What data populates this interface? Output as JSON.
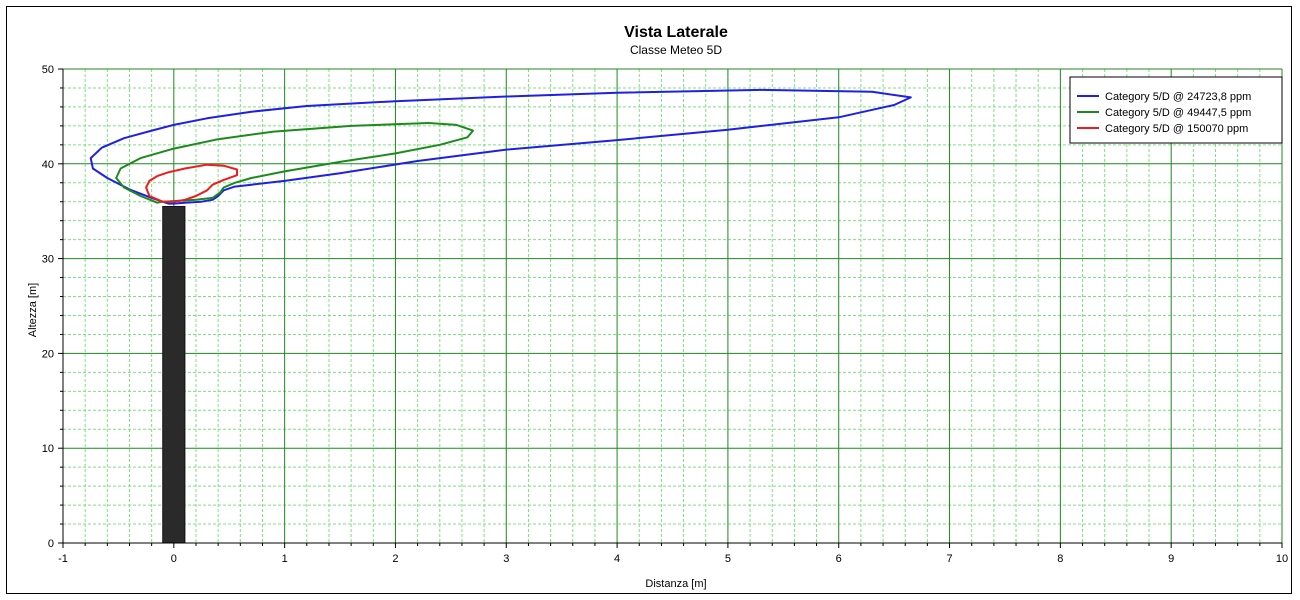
{
  "chart_data": {
    "type": "line",
    "title": "Vista Laterale",
    "subtitle": "Classe Meteo 5D",
    "xlabel": "Distanza [m]",
    "ylabel": "Altezza [m]",
    "xlim": [
      -1,
      10
    ],
    "ylim": [
      0,
      50
    ],
    "xticks": [
      "-1",
      "0",
      "1",
      "2",
      "3",
      "4",
      "5",
      "6",
      "7",
      "8",
      "9",
      "10"
    ],
    "yticks": [
      "0",
      "10",
      "20",
      "30",
      "40",
      "50"
    ],
    "grid": true,
    "legend_position": "top-right",
    "colors": {
      "blue": "#1f1fe6",
      "green": "#1c8a1c",
      "red": "#ee1c1c",
      "major_grid": "#1c8a1c",
      "minor_grid": "#7fe07f",
      "stack": "#2a2a2a"
    },
    "stack": {
      "x_range": [
        -0.1,
        0.1
      ],
      "y_range": [
        0,
        35.5
      ]
    },
    "series": [
      {
        "name": "Category 5/D @ 24723,8 ppm",
        "color": "#1f1fe6",
        "x": [
          -0.05,
          -0.2,
          -0.4,
          -0.6,
          -0.73,
          -0.75,
          -0.65,
          -0.45,
          -0.2,
          0.0,
          0.3,
          0.7,
          1.2,
          2.0,
          3.0,
          4.0,
          5.3,
          6.3,
          6.65,
          6.5,
          6.0,
          5.0,
          4.0,
          3.0,
          2.2,
          1.5,
          1.0,
          0.7,
          0.55,
          0.45,
          0.4,
          0.35,
          0.25,
          0.1,
          0.0,
          -0.05
        ],
        "y": [
          35.8,
          36.4,
          37.3,
          38.5,
          39.5,
          40.6,
          41.7,
          42.7,
          43.5,
          44.1,
          44.8,
          45.5,
          46.1,
          46.6,
          47.1,
          47.5,
          47.8,
          47.6,
          47.0,
          46.2,
          44.9,
          43.6,
          42.5,
          41.5,
          40.3,
          39.0,
          38.2,
          37.8,
          37.6,
          37.2,
          36.6,
          36.2,
          36.0,
          35.9,
          35.8,
          35.8
        ]
      },
      {
        "name": "Category 5/D @ 49447,5 ppm",
        "color": "#1c8a1c",
        "x": [
          -0.15,
          -0.3,
          -0.45,
          -0.52,
          -0.48,
          -0.3,
          0.0,
          0.4,
          0.9,
          1.6,
          2.3,
          2.55,
          2.7,
          2.65,
          2.4,
          2.0,
          1.5,
          1.0,
          0.7,
          0.55,
          0.45,
          0.42,
          0.35,
          0.2,
          0.05,
          -0.1,
          -0.15
        ],
        "y": [
          35.9,
          36.6,
          37.5,
          38.5,
          39.5,
          40.6,
          41.6,
          42.6,
          43.4,
          44.0,
          44.3,
          44.1,
          43.5,
          42.8,
          42.0,
          41.1,
          40.2,
          39.2,
          38.5,
          38.0,
          37.5,
          37.0,
          36.4,
          36.2,
          36.1,
          36.0,
          35.9
        ]
      },
      {
        "name": "Category 5/D @ 150070 ppm",
        "color": "#ee1c1c",
        "x": [
          -0.1,
          -0.22,
          -0.25,
          -0.22,
          -0.15,
          -0.05,
          0.1,
          0.3,
          0.45,
          0.57,
          0.57,
          0.45,
          0.35,
          0.3,
          0.2,
          0.1,
          0.0,
          -0.1
        ],
        "y": [
          36.0,
          36.6,
          37.5,
          38.2,
          38.7,
          39.1,
          39.5,
          39.9,
          39.8,
          39.4,
          38.8,
          38.3,
          37.8,
          37.2,
          36.6,
          36.2,
          36.0,
          36.0
        ]
      }
    ]
  }
}
